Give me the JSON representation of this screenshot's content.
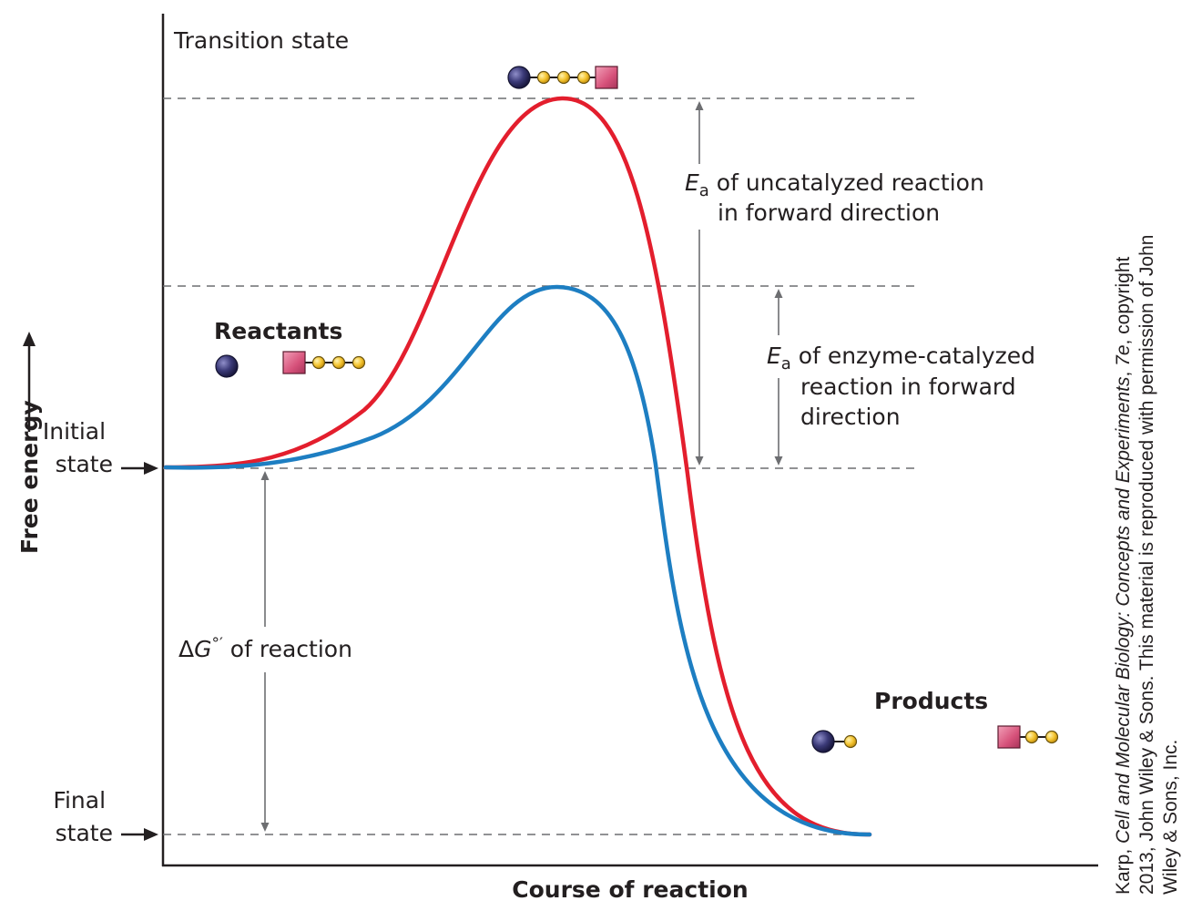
{
  "labels": {
    "transition_state": "Transition state",
    "reactants": "Reactants",
    "products": "Products",
    "free_energy": "Free energy",
    "initial_state_line1": "Initial",
    "initial_state_line2": "state",
    "final_state_line1": "Final",
    "final_state_line2": "state",
    "x_axis": "Course of reaction",
    "ea_symbol": "E",
    "ea_subscript": "a",
    "ea_uncatalyzed_line1": " of uncatalyzed reaction",
    "ea_uncatalyzed_line2": "in forward direction",
    "ea_enzyme_line1": " of enzyme-catalyzed",
    "ea_enzyme_line2": "reaction in forward",
    "ea_enzyme_line3": "direction",
    "delta_symbol": "Δ",
    "g_symbol": "G",
    "g_superscript": "°′",
    "delta_g_text": " of reaction"
  },
  "credit": {
    "line1_prefix": "Karp, ",
    "line1_italic": "Cell and Molecular Biology: Concepts and Experiments",
    "line1_mid": ", ",
    "line1_edition": "7e",
    "line1_suffix": ", copyright",
    "line2": "2013, John Wiley & Sons. This material is reproduced with permission of John",
    "line3": "Wiley & Sons, Inc."
  },
  "curves": [
    {
      "label": "uncatalyzed",
      "color": "#e31e2d"
    },
    {
      "label": "enzyme-catalyzed",
      "color": "#1d7ec2"
    }
  ],
  "colors": {
    "purple_sphere": "#3b3a78",
    "yellow_bead": "#f4c430",
    "pink_square": "#d6517a"
  },
  "icons": [
    "purple-sphere-icon",
    "yellow-bead-icon",
    "pink-square-icon",
    "arrow-icon"
  ]
}
